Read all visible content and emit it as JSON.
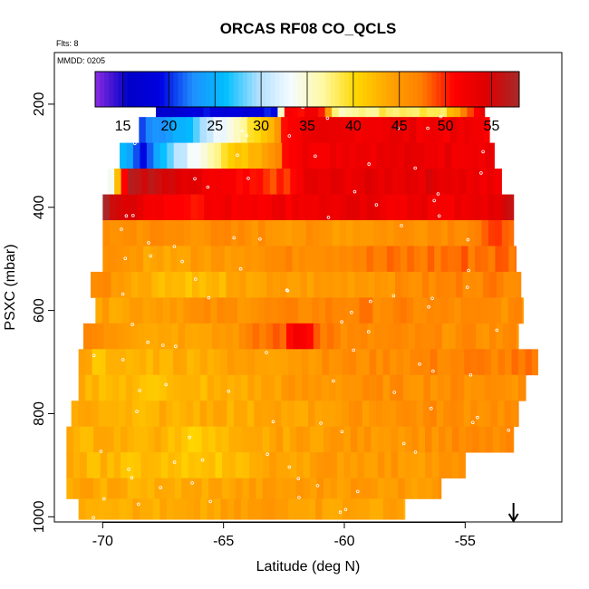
{
  "chart_data": {
    "type": "heatmap",
    "title": "ORCAS RF08 CO_QCLS",
    "flights_label": "Flts: 8",
    "date_label": "MMDD: 0205",
    "xlabel": "Latitude (deg N)",
    "ylabel": "PSXC (mbar)",
    "xlim": [
      -72,
      -51
    ],
    "ylim": [
      1010,
      100
    ],
    "x_ticks": [
      -70,
      -65,
      -60,
      -55
    ],
    "x_tick_labels": [
      "-70",
      "-65",
      "-60",
      "-55"
    ],
    "y_ticks": [
      200,
      400,
      600,
      800,
      1000
    ],
    "y_tick_labels": [
      "200",
      "400",
      "600",
      "800",
      "1000"
    ],
    "colorbar": {
      "range": [
        12,
        58
      ],
      "ticks": [
        15,
        20,
        25,
        30,
        35,
        40,
        45,
        50,
        55
      ],
      "tick_labels": [
        "15",
        "20",
        "25",
        "30",
        "35",
        "40",
        "45",
        "50",
        "55"
      ],
      "colors": [
        "#8b2be2",
        "#0000c8",
        "#0000e0",
        "#1e90ff",
        "#00bfff",
        "#b0e0ff",
        "#f5fbff",
        "#fff9a0",
        "#ffd700",
        "#ffa500",
        "#ff7f00",
        "#ff0000",
        "#dd0000",
        "#a52a2a"
      ]
    },
    "bands": [
      {
        "p_top": 175,
        "p_bot": 225,
        "segments": [
          {
            "lon": -67.8,
            "v": 16
          },
          {
            "lon": -66.3,
            "v": 19
          },
          {
            "lon": -64.5,
            "v": 18
          },
          {
            "lon": -63,
            "v": 20
          },
          {
            "lon": -62.5,
            "v": 52
          },
          {
            "lon": -61,
            "v": 51
          },
          {
            "lon": -60.5,
            "v": 36
          },
          {
            "lon": -58.5,
            "v": 38
          },
          {
            "lon": -56,
            "v": 39
          },
          {
            "lon": -54.5,
            "v": 53
          }
        ],
        "end": -54.2
      },
      {
        "p_top": 225,
        "p_bot": 275,
        "segments": [
          {
            "lon": -68.5,
            "v": 21
          },
          {
            "lon": -66.5,
            "v": 27
          },
          {
            "lon": -64.5,
            "v": 36
          },
          {
            "lon": -63,
            "v": 44
          },
          {
            "lon": -62.5,
            "v": 52
          },
          {
            "lon": -58,
            "v": 53
          },
          {
            "lon": -55,
            "v": 52
          }
        ],
        "end": -54.0
      },
      {
        "p_top": 275,
        "p_bot": 325,
        "segments": [
          {
            "lon": -69.3,
            "v": 25
          },
          {
            "lon": -68.5,
            "v": 20
          },
          {
            "lon": -67,
            "v": 30
          },
          {
            "lon": -65.5,
            "v": 38
          },
          {
            "lon": -63,
            "v": 46
          },
          {
            "lon": -62.5,
            "v": 52
          },
          {
            "lon": -60,
            "v": 53
          },
          {
            "lon": -55,
            "v": 53
          }
        ],
        "end": -53.8
      },
      {
        "p_top": 325,
        "p_bot": 375,
        "segments": [
          {
            "lon": -69.8,
            "v": 34
          },
          {
            "lon": -69,
            "v": 57
          },
          {
            "lon": -67,
            "v": 54
          },
          {
            "lon": -65,
            "v": 51
          },
          {
            "lon": -62.5,
            "v": 49
          },
          {
            "lon": -61.8,
            "v": 53
          },
          {
            "lon": -56,
            "v": 54
          },
          {
            "lon": -54,
            "v": 52
          }
        ],
        "end": -53.5
      },
      {
        "p_top": 375,
        "p_bot": 425,
        "segments": [
          {
            "lon": -70.0,
            "v": 57
          },
          {
            "lon": -69,
            "v": 54
          },
          {
            "lon": -67,
            "v": 51
          },
          {
            "lon": -65,
            "v": 52
          },
          {
            "lon": -60,
            "v": 53
          },
          {
            "lon": -55,
            "v": 52
          },
          {
            "lon": -53.3,
            "v": 55
          }
        ],
        "end": -53.0
      },
      {
        "p_top": 425,
        "p_bot": 475,
        "segments": [
          {
            "lon": -70.0,
            "v": 46
          },
          {
            "lon": -65,
            "v": 46
          },
          {
            "lon": -60,
            "v": 45
          },
          {
            "lon": -55,
            "v": 47
          },
          {
            "lon": -53.5,
            "v": 49
          }
        ],
        "end": -53.0
      },
      {
        "p_top": 475,
        "p_bot": 525,
        "segments": [
          {
            "lon": -70.0,
            "v": 45
          },
          {
            "lon": -67,
            "v": 44
          },
          {
            "lon": -64,
            "v": 46
          },
          {
            "lon": -60,
            "v": 47
          },
          {
            "lon": -55,
            "v": 48
          }
        ],
        "end": -52.9
      },
      {
        "p_top": 525,
        "p_bot": 575,
        "segments": [
          {
            "lon": -70.5,
            "v": 47
          },
          {
            "lon": -68,
            "v": 43
          },
          {
            "lon": -66,
            "v": 42
          },
          {
            "lon": -64,
            "v": 44
          },
          {
            "lon": -60,
            "v": 45
          },
          {
            "lon": -55,
            "v": 47
          }
        ],
        "end": -52.7
      },
      {
        "p_top": 575,
        "p_bot": 625,
        "segments": [
          {
            "lon": -70.3,
            "v": 44
          },
          {
            "lon": -68,
            "v": 45
          },
          {
            "lon": -64,
            "v": 46
          },
          {
            "lon": -60,
            "v": 47
          },
          {
            "lon": -55,
            "v": 46
          }
        ],
        "end": -52.6
      },
      {
        "p_top": 625,
        "p_bot": 675,
        "segments": [
          {
            "lon": -70.8,
            "v": 47
          },
          {
            "lon": -68,
            "v": 44
          },
          {
            "lon": -65,
            "v": 45
          },
          {
            "lon": -62.5,
            "v": 49
          },
          {
            "lon": -62,
            "v": 53
          },
          {
            "lon": -61,
            "v": 48
          },
          {
            "lon": -60,
            "v": 46
          },
          {
            "lon": -55,
            "v": 46
          }
        ],
        "end": -52.8
      },
      {
        "p_top": 675,
        "p_bot": 725,
        "segments": [
          {
            "lon": -71.0,
            "v": 45
          },
          {
            "lon": -70.5,
            "v": 42
          },
          {
            "lon": -68,
            "v": 43
          },
          {
            "lon": -65,
            "v": 44
          },
          {
            "lon": -60,
            "v": 46
          },
          {
            "lon": -55,
            "v": 47
          }
        ],
        "end": -52.0
      },
      {
        "p_top": 725,
        "p_bot": 775,
        "segments": [
          {
            "lon": -71.0,
            "v": 43
          },
          {
            "lon": -68,
            "v": 42
          },
          {
            "lon": -65,
            "v": 43
          },
          {
            "lon": -62,
            "v": 45
          },
          {
            "lon": -58,
            "v": 46
          },
          {
            "lon": -55,
            "v": 46
          }
        ],
        "end": -52.5
      },
      {
        "p_top": 775,
        "p_bot": 825,
        "segments": [
          {
            "lon": -71.3,
            "v": 44
          },
          {
            "lon": -69,
            "v": 43
          },
          {
            "lon": -66,
            "v": 43
          },
          {
            "lon": -62,
            "v": 44
          },
          {
            "lon": -58,
            "v": 46
          }
        ],
        "end": -52.8
      },
      {
        "p_top": 825,
        "p_bot": 875,
        "segments": [
          {
            "lon": -71.5,
            "v": 43
          },
          {
            "lon": -68,
            "v": 43
          },
          {
            "lon": -66,
            "v": 41
          },
          {
            "lon": -63,
            "v": 44
          },
          {
            "lon": -60,
            "v": 45
          },
          {
            "lon": -56,
            "v": 46
          }
        ],
        "end": -53.0
      },
      {
        "p_top": 875,
        "p_bot": 925,
        "segments": [
          {
            "lon": -71.5,
            "v": 43
          },
          {
            "lon": -68,
            "v": 42
          },
          {
            "lon": -66,
            "v": 41
          },
          {
            "lon": -63,
            "v": 44
          },
          {
            "lon": -60,
            "v": 45
          }
        ],
        "end": -55.0
      },
      {
        "p_top": 925,
        "p_bot": 965,
        "segments": [
          {
            "lon": -71.5,
            "v": 44
          },
          {
            "lon": -68,
            "v": 43
          },
          {
            "lon": -65,
            "v": 44
          },
          {
            "lon": -61,
            "v": 45
          },
          {
            "lon": -58,
            "v": 45
          }
        ],
        "end": -56.0
      },
      {
        "p_top": 965,
        "p_bot": 1005,
        "segments": [
          {
            "lon": -71.0,
            "v": 44
          },
          {
            "lon": -67,
            "v": 43
          },
          {
            "lon": -63,
            "v": 45
          },
          {
            "lon": -60,
            "v": 44
          }
        ],
        "end": -57.5
      }
    ],
    "arrow_marker": {
      "lon": -53
    }
  }
}
